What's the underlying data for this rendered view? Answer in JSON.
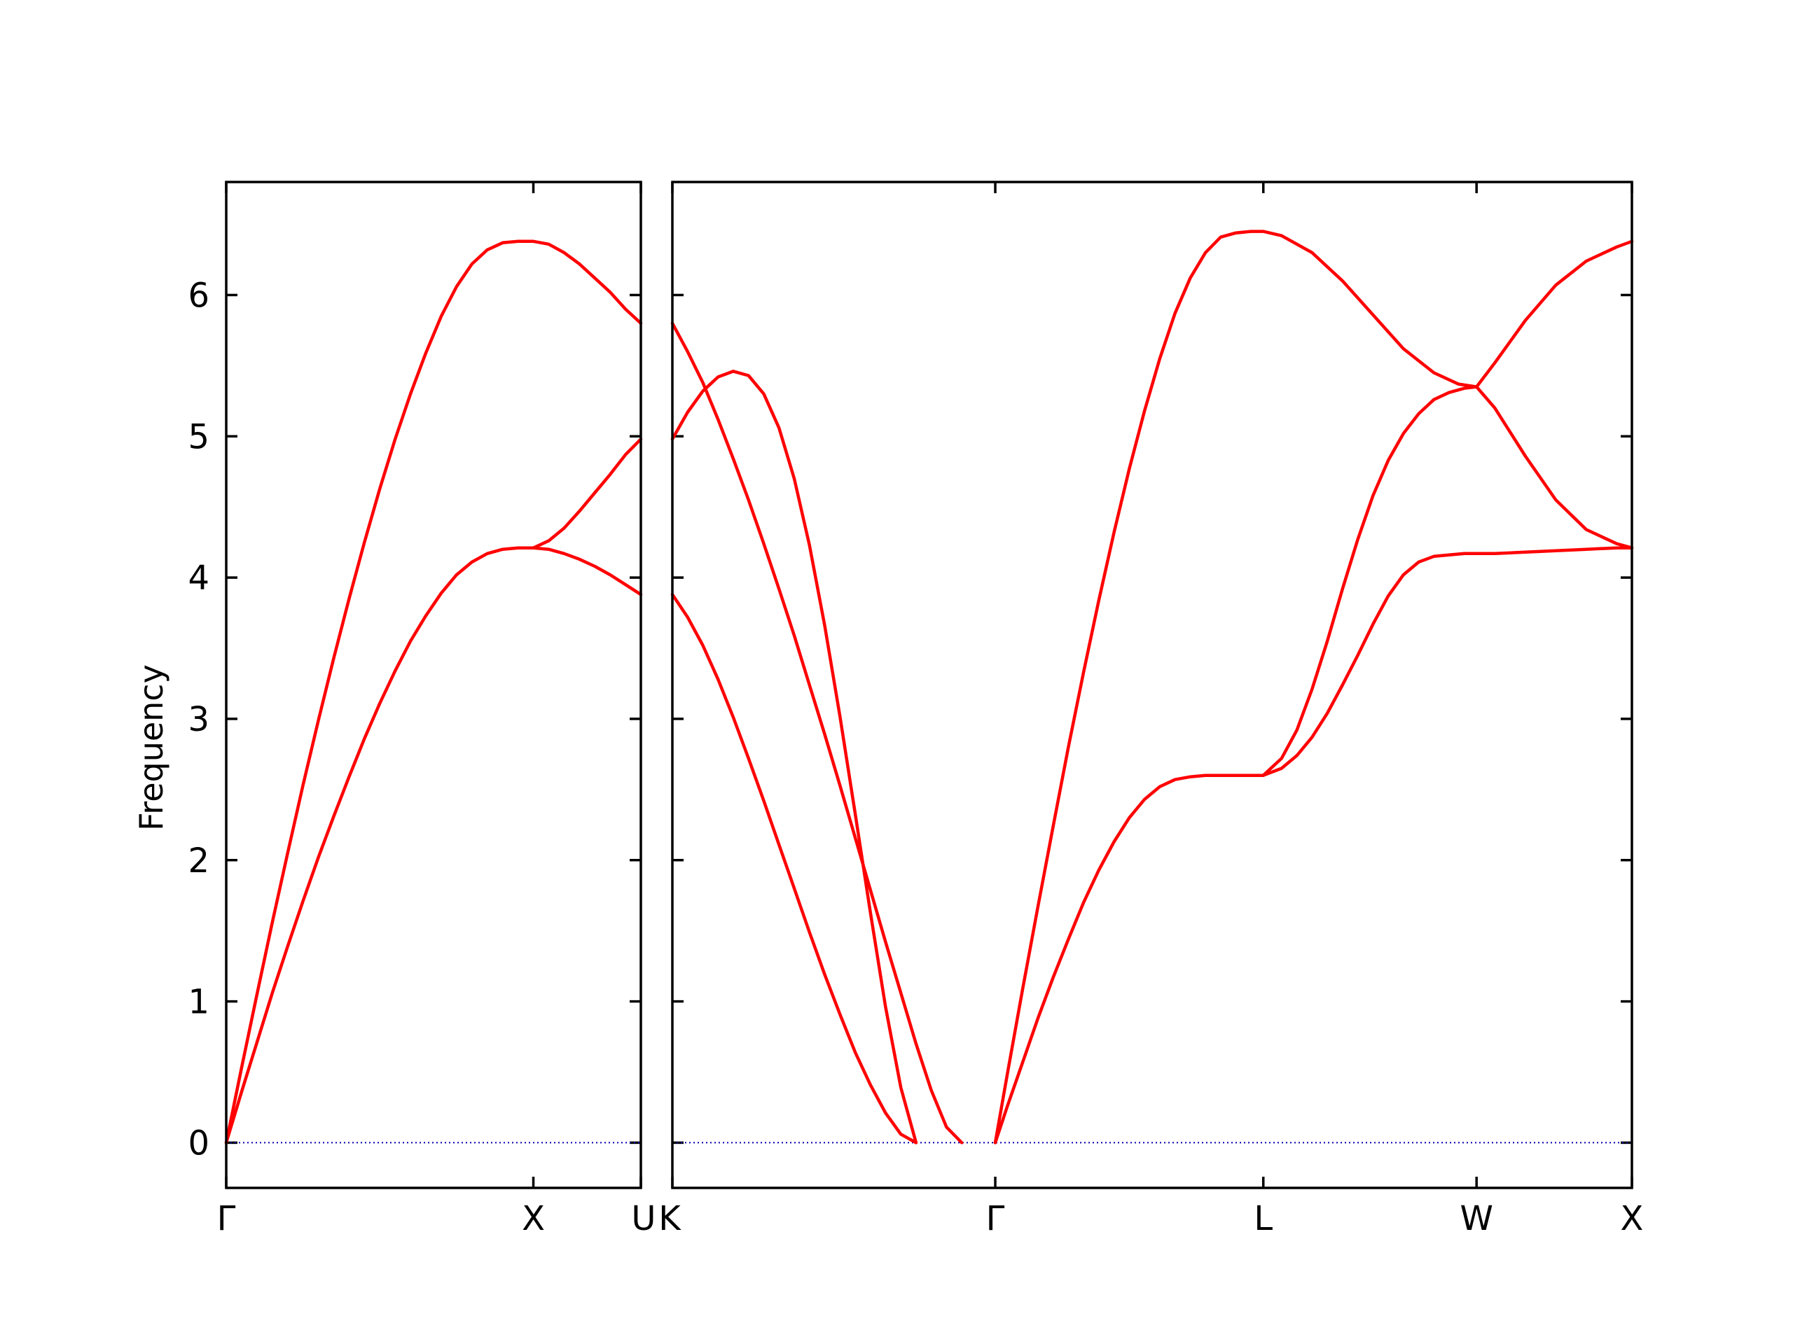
{
  "chart_data": {
    "type": "line",
    "title": "",
    "ylabel": "Frequency",
    "ylim": [
      -0.32,
      6.8
    ],
    "y_ticks": [
      0,
      1,
      2,
      3,
      4,
      5,
      6
    ],
    "grid": false,
    "line_color": "#ff0000",
    "zero_line_color": "#0000aa",
    "panels": [
      {
        "id": "left",
        "x_range": [
          0,
          1.35
        ],
        "x_ticks": [
          {
            "label": "Γ",
            "x": 0
          },
          {
            "label": "X",
            "x": 1.0
          },
          {
            "label": "U",
            "x": 1.35
          }
        ],
        "series": [
          {
            "points": [
              [
                0,
                0
              ],
              [
                0.05,
                0.53
              ],
              [
                0.1,
                1.05
              ],
              [
                0.15,
                1.56
              ],
              [
                0.2,
                2.05
              ],
              [
                0.25,
                2.53
              ],
              [
                0.3,
                2.99
              ],
              [
                0.35,
                3.43
              ],
              [
                0.4,
                3.85
              ],
              [
                0.45,
                4.25
              ],
              [
                0.5,
                4.63
              ],
              [
                0.55,
                4.98
              ],
              [
                0.6,
                5.3
              ],
              [
                0.65,
                5.59
              ],
              [
                0.7,
                5.85
              ],
              [
                0.75,
                6.06
              ],
              [
                0.8,
                6.22
              ],
              [
                0.85,
                6.32
              ],
              [
                0.9,
                6.37
              ],
              [
                0.95,
                6.38
              ],
              [
                1.0,
                6.38
              ],
              [
                1.05,
                6.36
              ],
              [
                1.1,
                6.3
              ],
              [
                1.15,
                6.22
              ],
              [
                1.2,
                6.12
              ],
              [
                1.25,
                6.02
              ],
              [
                1.3,
                5.9
              ],
              [
                1.35,
                5.8
              ]
            ]
          },
          {
            "points": [
              [
                0,
                0
              ],
              [
                0.05,
                0.36
              ],
              [
                0.1,
                0.71
              ],
              [
                0.15,
                1.06
              ],
              [
                0.2,
                1.39
              ],
              [
                0.25,
                1.71
              ],
              [
                0.3,
                2.02
              ],
              [
                0.35,
                2.31
              ],
              [
                0.4,
                2.59
              ],
              [
                0.45,
                2.86
              ],
              [
                0.5,
                3.11
              ],
              [
                0.55,
                3.34
              ],
              [
                0.6,
                3.55
              ],
              [
                0.65,
                3.73
              ],
              [
                0.7,
                3.89
              ],
              [
                0.75,
                4.02
              ],
              [
                0.8,
                4.11
              ],
              [
                0.85,
                4.17
              ],
              [
                0.9,
                4.2
              ],
              [
                0.95,
                4.21
              ],
              [
                1.0,
                4.21
              ],
              [
                1.05,
                4.26
              ],
              [
                1.1,
                4.35
              ],
              [
                1.15,
                4.47
              ],
              [
                1.2,
                4.6
              ],
              [
                1.25,
                4.73
              ],
              [
                1.3,
                4.87
              ],
              [
                1.35,
                4.98
              ]
            ]
          },
          {
            "points": [
              [
                1.0,
                4.21
              ],
              [
                1.05,
                4.2
              ],
              [
                1.1,
                4.17
              ],
              [
                1.15,
                4.13
              ],
              [
                1.2,
                4.08
              ],
              [
                1.25,
                4.02
              ],
              [
                1.3,
                3.95
              ],
              [
                1.35,
                3.88
              ]
            ]
          }
        ]
      },
      {
        "id": "right",
        "x_range": [
          0,
          3.15
        ],
        "x_ticks": [
          {
            "label": "K",
            "x": 0
          },
          {
            "label": "Γ",
            "x": 1.06
          },
          {
            "label": "L",
            "x": 1.94
          },
          {
            "label": "W",
            "x": 2.64
          },
          {
            "label": "X",
            "x": 3.15
          }
        ],
        "series": [
          {
            "points": [
              [
                0,
                5.8
              ],
              [
                0.05,
                5.6
              ],
              [
                0.1,
                5.38
              ],
              [
                0.15,
                5.12
              ],
              [
                0.2,
                4.84
              ],
              [
                0.25,
                4.55
              ],
              [
                0.3,
                4.24
              ],
              [
                0.35,
                3.92
              ],
              [
                0.4,
                3.59
              ],
              [
                0.45,
                3.24
              ],
              [
                0.5,
                2.89
              ],
              [
                0.55,
                2.53
              ],
              [
                0.6,
                2.16
              ],
              [
                0.65,
                1.79
              ],
              [
                0.7,
                1.42
              ],
              [
                0.75,
                1.06
              ],
              [
                0.8,
                0.7
              ],
              [
                0.85,
                0.37
              ],
              [
                0.9,
                0.11
              ],
              [
                0.95,
                0.0
              ]
            ]
          },
          {
            "points": [
              [
                0,
                4.98
              ],
              [
                0.05,
                5.17
              ],
              [
                0.1,
                5.32
              ],
              [
                0.15,
                5.42
              ],
              [
                0.2,
                5.46
              ],
              [
                0.25,
                5.43
              ],
              [
                0.3,
                5.3
              ],
              [
                0.35,
                5.06
              ],
              [
                0.4,
                4.7
              ],
              [
                0.45,
                4.23
              ],
              [
                0.5,
                3.66
              ],
              [
                0.55,
                3.02
              ],
              [
                0.6,
                2.33
              ],
              [
                0.65,
                1.63
              ],
              [
                0.7,
                0.96
              ],
              [
                0.75,
                0.39
              ],
              [
                0.8,
                0.0
              ]
            ]
          },
          {
            "points": [
              [
                0,
                3.88
              ],
              [
                0.05,
                3.72
              ],
              [
                0.1,
                3.52
              ],
              [
                0.15,
                3.28
              ],
              [
                0.2,
                3.01
              ],
              [
                0.25,
                2.72
              ],
              [
                0.3,
                2.42
              ],
              [
                0.35,
                2.11
              ],
              [
                0.4,
                1.8
              ],
              [
                0.45,
                1.49
              ],
              [
                0.5,
                1.19
              ],
              [
                0.55,
                0.91
              ],
              [
                0.6,
                0.64
              ],
              [
                0.65,
                0.41
              ],
              [
                0.7,
                0.21
              ],
              [
                0.75,
                0.06
              ],
              [
                0.8,
                0.0
              ]
            ]
          },
          {
            "points": [
              [
                1.06,
                0.0
              ],
              [
                1.1,
                0.49
              ],
              [
                1.15,
                1.09
              ],
              [
                1.2,
                1.67
              ],
              [
                1.25,
                2.24
              ],
              [
                1.3,
                2.8
              ],
              [
                1.35,
                3.33
              ],
              [
                1.4,
                3.84
              ],
              [
                1.45,
                4.32
              ],
              [
                1.5,
                4.77
              ],
              [
                1.55,
                5.18
              ],
              [
                1.6,
                5.55
              ],
              [
                1.65,
                5.87
              ],
              [
                1.7,
                6.12
              ],
              [
                1.75,
                6.3
              ],
              [
                1.8,
                6.41
              ],
              [
                1.85,
                6.44
              ],
              [
                1.9,
                6.45
              ],
              [
                1.94,
                6.45
              ],
              [
                2.0,
                6.42
              ],
              [
                2.1,
                6.3
              ],
              [
                2.2,
                6.1
              ],
              [
                2.3,
                5.86
              ],
              [
                2.4,
                5.62
              ],
              [
                2.5,
                5.45
              ],
              [
                2.58,
                5.37
              ],
              [
                2.64,
                5.35
              ],
              [
                2.7,
                5.52
              ],
              [
                2.8,
                5.82
              ],
              [
                2.9,
                6.07
              ],
              [
                3.0,
                6.24
              ],
              [
                3.1,
                6.34
              ],
              [
                3.15,
                6.38
              ]
            ]
          },
          {
            "points": [
              [
                1.06,
                0.0
              ],
              [
                1.1,
                0.26
              ],
              [
                1.15,
                0.57
              ],
              [
                1.2,
                0.88
              ],
              [
                1.25,
                1.17
              ],
              [
                1.3,
                1.44
              ],
              [
                1.35,
                1.7
              ],
              [
                1.4,
                1.93
              ],
              [
                1.45,
                2.13
              ],
              [
                1.5,
                2.3
              ],
              [
                1.55,
                2.43
              ],
              [
                1.6,
                2.52
              ],
              [
                1.65,
                2.57
              ],
              [
                1.7,
                2.59
              ],
              [
                1.75,
                2.6
              ],
              [
                1.8,
                2.6
              ],
              [
                1.85,
                2.6
              ],
              [
                1.9,
                2.6
              ],
              [
                1.94,
                2.6
              ]
            ]
          },
          {
            "points": [
              [
                1.94,
                2.6
              ],
              [
                2.0,
                2.72
              ],
              [
                2.05,
                2.92
              ],
              [
                2.1,
                3.21
              ],
              [
                2.15,
                3.55
              ],
              [
                2.2,
                3.92
              ],
              [
                2.25,
                4.27
              ],
              [
                2.3,
                4.58
              ],
              [
                2.35,
                4.83
              ],
              [
                2.4,
                5.02
              ],
              [
                2.45,
                5.16
              ],
              [
                2.5,
                5.26
              ],
              [
                2.55,
                5.31
              ],
              [
                2.6,
                5.34
              ],
              [
                2.64,
                5.35
              ],
              [
                2.7,
                5.2
              ],
              [
                2.8,
                4.86
              ],
              [
                2.9,
                4.55
              ],
              [
                3.0,
                4.34
              ],
              [
                3.1,
                4.24
              ],
              [
                3.15,
                4.21
              ]
            ]
          },
          {
            "points": [
              [
                1.94,
                2.6
              ],
              [
                2.0,
                2.65
              ],
              [
                2.05,
                2.74
              ],
              [
                2.1,
                2.87
              ],
              [
                2.15,
                3.04
              ],
              [
                2.2,
                3.24
              ],
              [
                2.25,
                3.45
              ],
              [
                2.3,
                3.67
              ],
              [
                2.35,
                3.87
              ],
              [
                2.4,
                4.02
              ],
              [
                2.45,
                4.11
              ],
              [
                2.5,
                4.15
              ],
              [
                2.55,
                4.16
              ],
              [
                2.6,
                4.17
              ],
              [
                2.64,
                4.17
              ],
              [
                2.7,
                4.17
              ],
              [
                2.8,
                4.18
              ],
              [
                2.9,
                4.19
              ],
              [
                3.0,
                4.2
              ],
              [
                3.1,
                4.21
              ],
              [
                3.15,
                4.21
              ]
            ]
          }
        ]
      }
    ]
  }
}
